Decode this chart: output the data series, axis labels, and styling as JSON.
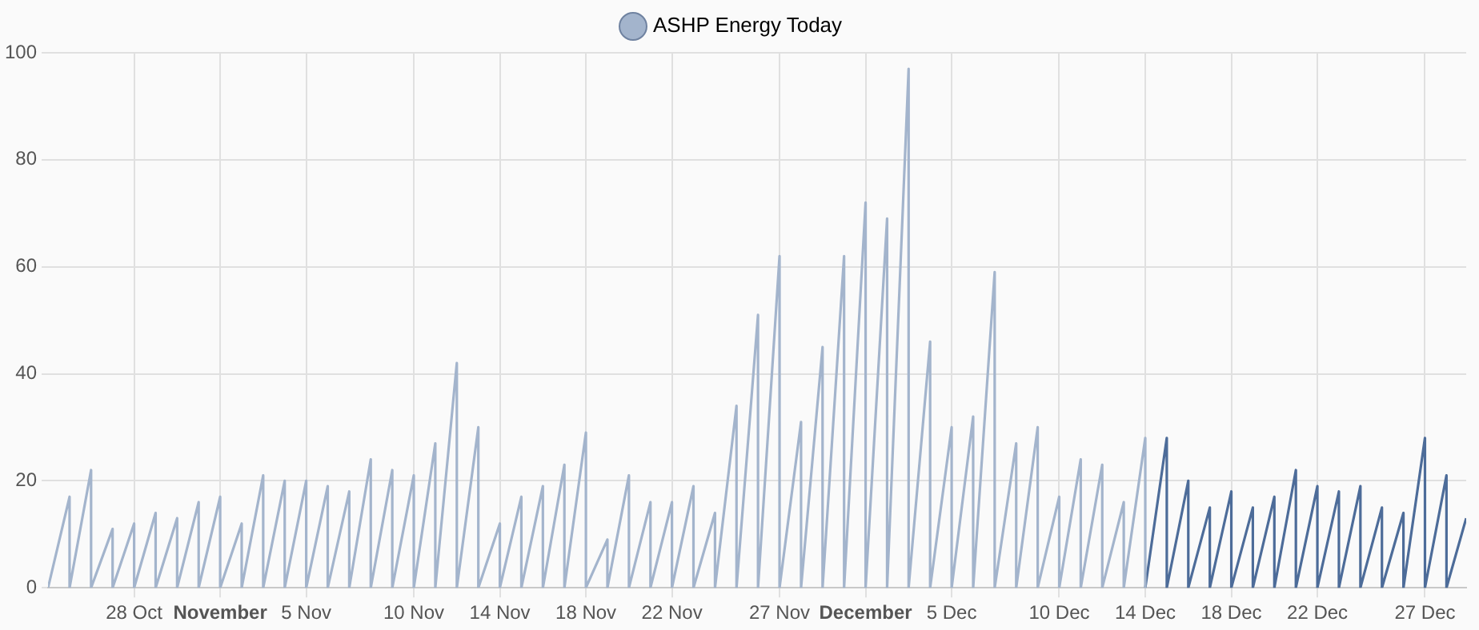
{
  "chart_data": {
    "type": "line",
    "legend": "top",
    "grid": true,
    "marker": "none",
    "line_style": "solid",
    "xlim": [
      "--10-24",
      "--12-28T22:00"
    ],
    "xticks": [
      {
        "value": "--10-28",
        "label": "28 Oct"
      },
      {
        "value": "--11-01",
        "label": "November"
      },
      {
        "value": "--11-05",
        "label": "5 Nov"
      },
      {
        "value": "--11-10",
        "label": "10 Nov"
      },
      {
        "value": "--11-14",
        "label": "14 Nov"
      },
      {
        "value": "--11-18",
        "label": "18 Nov"
      },
      {
        "value": "--11-22",
        "label": "22 Nov"
      },
      {
        "value": "--11-27",
        "label": "27 Nov"
      },
      {
        "value": "--12-01",
        "label": "December"
      },
      {
        "value": "--12-05",
        "label": "5 Dec"
      },
      {
        "value": "--12-10",
        "label": "10 Dec"
      },
      {
        "value": "--12-14",
        "label": "14 Dec"
      },
      {
        "value": "--12-18",
        "label": "18 Dec"
      },
      {
        "value": "--12-22",
        "label": "22 Dec"
      },
      {
        "value": "--12-27",
        "label": "27 Dec"
      }
    ],
    "ylim": [
      0,
      100
    ],
    "yticks": [
      0,
      20,
      40,
      60,
      80,
      100
    ],
    "series": [
      {
        "name": "ASHP Energy Today",
        "color": "#a3b4cc",
        "x": [
          "--10-24",
          "--10-25",
          "--10-25",
          "--10-26",
          "--10-26",
          "--10-27",
          "--10-27",
          "--10-28",
          "--10-28",
          "--10-29",
          "--10-29",
          "--10-30",
          "--10-30",
          "--10-31",
          "--10-31",
          "--11-01",
          "--11-01",
          "--11-02",
          "--11-02",
          "--11-03",
          "--11-03",
          "--11-04",
          "--11-04",
          "--11-05",
          "--11-05",
          "--11-06",
          "--11-06",
          "--11-07",
          "--11-07",
          "--11-08",
          "--11-08",
          "--11-09",
          "--11-09",
          "--11-10",
          "--11-10",
          "--11-11",
          "--11-11",
          "--11-12",
          "--11-12",
          "--11-13",
          "--11-13",
          "--11-14",
          "--11-14",
          "--11-15",
          "--11-15",
          "--11-16",
          "--11-16",
          "--11-17",
          "--11-17",
          "--11-18",
          "--11-18",
          "--11-19",
          "--11-19",
          "--11-20",
          "--11-20",
          "--11-21",
          "--11-21",
          "--11-22",
          "--11-22",
          "--11-23",
          "--11-23",
          "--11-24",
          "--11-24",
          "--11-25",
          "--11-25",
          "--11-26",
          "--11-26",
          "--11-27",
          "--11-27",
          "--11-28",
          "--11-28",
          "--11-29",
          "--11-29",
          "--11-30",
          "--11-30",
          "--12-01",
          "--12-01",
          "--12-02",
          "--12-02",
          "--12-03",
          "--12-03",
          "--12-04",
          "--12-04",
          "--12-05",
          "--12-05",
          "--12-06",
          "--12-06",
          "--12-07",
          "--12-07",
          "--12-08",
          "--12-08",
          "--12-09",
          "--12-09",
          "--12-10",
          "--12-10",
          "--12-11",
          "--12-11",
          "--12-12",
          "--12-12",
          "--12-13",
          "--12-13",
          "--12-14",
          "--12-14"
        ],
        "values": [
          0,
          17,
          0,
          22,
          0,
          11,
          0,
          12,
          0,
          14,
          0,
          13,
          0,
          16,
          0,
          17,
          0,
          12,
          0,
          21,
          0,
          20,
          0,
          20,
          0,
          19,
          0,
          18,
          0,
          24,
          0,
          22,
          0,
          21,
          0,
          27,
          0,
          42,
          0,
          30,
          0,
          12,
          0,
          17,
          0,
          19,
          0,
          23,
          0,
          29,
          0,
          9,
          0,
          21,
          0,
          16,
          0,
          16,
          0,
          19,
          0,
          14,
          0,
          34,
          0,
          51,
          0,
          62,
          0,
          31,
          0,
          45,
          0,
          62,
          0,
          72,
          0,
          69,
          0,
          97,
          0,
          46,
          0,
          30,
          0,
          32,
          0,
          59,
          0,
          27,
          0,
          30,
          0,
          17,
          0,
          24,
          0,
          23,
          0,
          16,
          0,
          28,
          0
        ]
      },
      {
        "color": "#4d6c99",
        "x": [
          "--12-14",
          "--12-15",
          "--12-15",
          "--12-16",
          "--12-16",
          "--12-17",
          "--12-17",
          "--12-18",
          "--12-18",
          "--12-19",
          "--12-19",
          "--12-20",
          "--12-20",
          "--12-21",
          "--12-21",
          "--12-22",
          "--12-22",
          "--12-23",
          "--12-23",
          "--12-24",
          "--12-24",
          "--12-25",
          "--12-25",
          "--12-26",
          "--12-26",
          "--12-27",
          "--12-27",
          "--12-28",
          "--12-28",
          "--12-28T22:00"
        ],
        "values": [
          0,
          28,
          0,
          20,
          0,
          15,
          0,
          18,
          0,
          15,
          0,
          17,
          0,
          22,
          0,
          19,
          0,
          18,
          0,
          19,
          0,
          15,
          0,
          14,
          0,
          28,
          0,
          21,
          0,
          13
        ]
      }
    ]
  }
}
